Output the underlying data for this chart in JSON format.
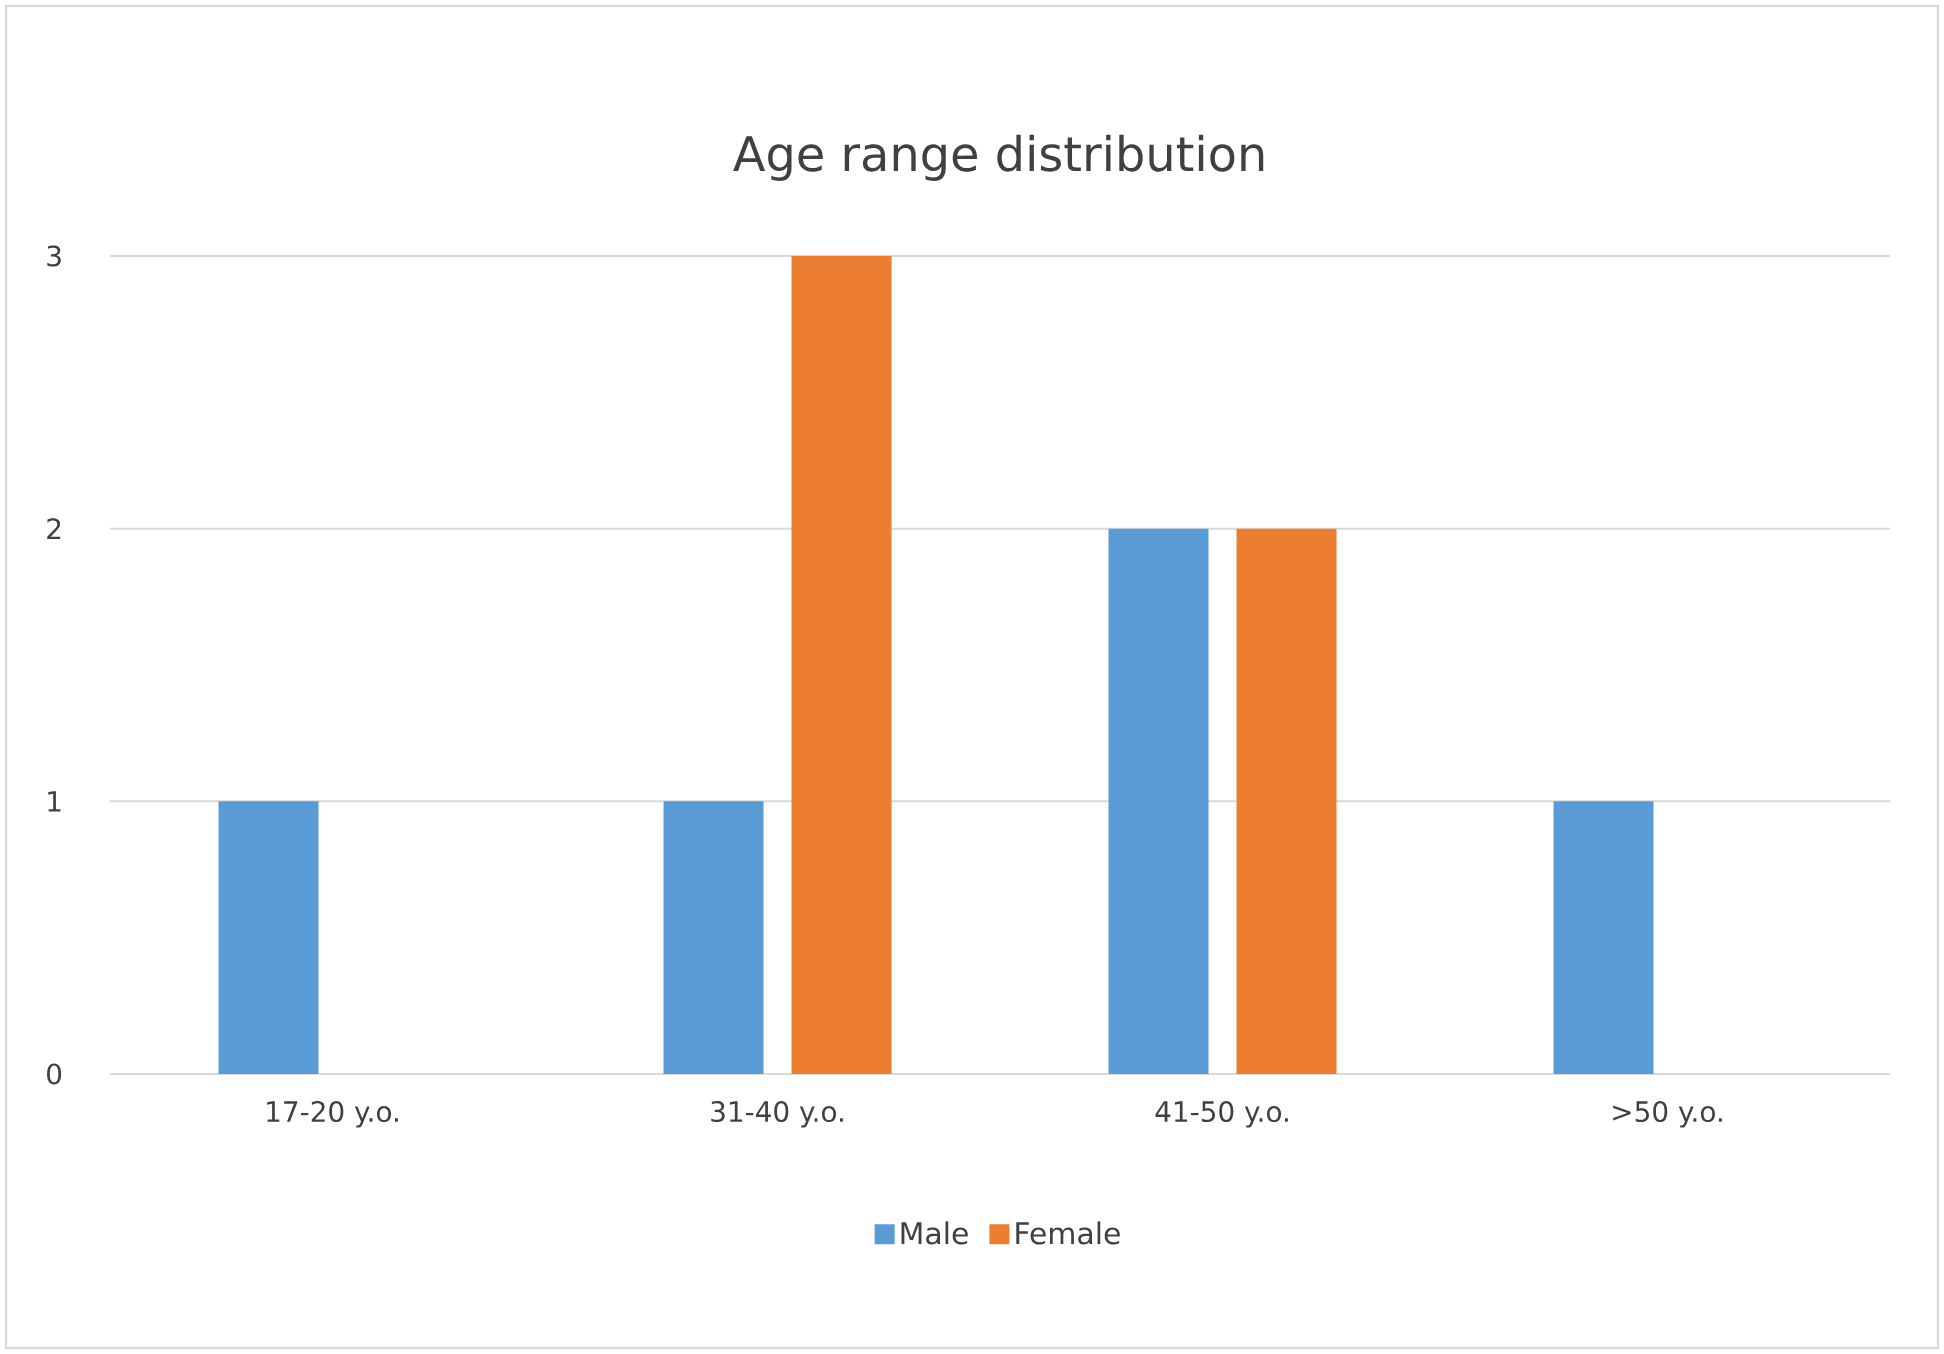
{
  "chart_data": {
    "type": "bar",
    "title": "Age range distribution",
    "categories": [
      "17-20 y.o.",
      "31-40 y.o.",
      "41-50 y.o.",
      ">50 y.o."
    ],
    "series": [
      {
        "name": "Male",
        "color": "#5b9bd5",
        "values": [
          1,
          1,
          2,
          1
        ]
      },
      {
        "name": "Female",
        "color": "#ed7d31",
        "values": [
          0,
          3,
          2,
          0
        ]
      }
    ],
    "ylim": [
      0,
      3
    ],
    "yticks": [
      0,
      1,
      2,
      3
    ],
    "grid": "y",
    "legend": "bottom"
  }
}
